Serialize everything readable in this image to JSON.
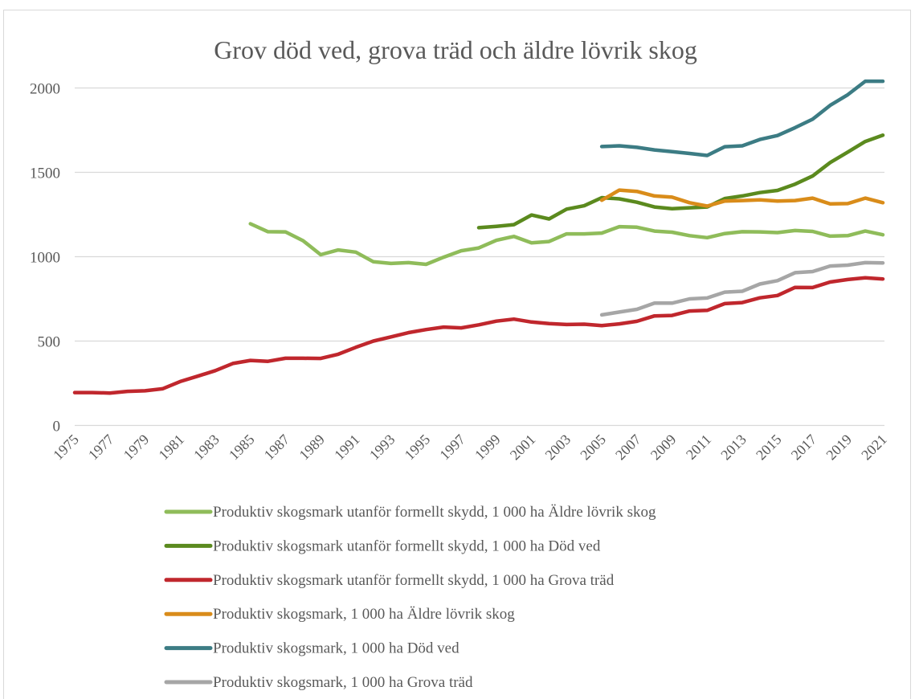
{
  "chart_data": {
    "type": "line",
    "title": "Grov död ved, grova träd och äldre lövrik skog",
    "xlabel": "",
    "ylabel": "",
    "ylim": [
      0,
      2000
    ],
    "yticks": [
      0,
      500,
      1000,
      1500,
      2000
    ],
    "grid": true,
    "legend_position": "bottom",
    "x": [
      1975,
      1976,
      1977,
      1978,
      1979,
      1980,
      1981,
      1982,
      1983,
      1984,
      1985,
      1986,
      1987,
      1988,
      1989,
      1990,
      1991,
      1992,
      1993,
      1994,
      1995,
      1996,
      1997,
      1998,
      1999,
      2000,
      2001,
      2002,
      2003,
      2004,
      2005,
      2006,
      2007,
      2008,
      2009,
      2010,
      2011,
      2012,
      2013,
      2014,
      2015,
      2016,
      2017,
      2018,
      2019,
      2020,
      2021
    ],
    "xtick_labels": [
      "1975",
      "1977",
      "1979",
      "1981",
      "1983",
      "1985",
      "1987",
      "1989",
      "1991",
      "1993",
      "1995",
      "1997",
      "1999",
      "2001",
      "2003",
      "2005",
      "2007",
      "2009",
      "2011",
      "2013",
      "2015",
      "2017",
      "2019",
      "2021"
    ],
    "series": [
      {
        "name": "Produktiv skogsmark utanför formellt skydd, 1 000 ha Äldre lövrik skog",
        "color": "#8fbc5a",
        "values": [
          null,
          null,
          null,
          null,
          null,
          null,
          null,
          null,
          null,
          null,
          1195,
          1148,
          1147,
          1095,
          1012,
          1040,
          1027,
          970,
          960,
          965,
          955,
          997,
          1035,
          1052,
          1097,
          1120,
          1082,
          1090,
          1135,
          1135,
          1140,
          1178,
          1175,
          1152,
          1145,
          1125,
          1113,
          1137,
          1148,
          1147,
          1143,
          1155,
          1150,
          1122,
          1125,
          1152,
          1130
        ]
      },
      {
        "name": "Produktiv skogsmark utanför formellt skydd, 1 000 ha Död ved",
        "color": "#5b8a1e",
        "values": [
          null,
          null,
          null,
          null,
          null,
          null,
          null,
          null,
          null,
          null,
          null,
          null,
          null,
          null,
          null,
          null,
          null,
          null,
          null,
          null,
          null,
          null,
          null,
          1172,
          1180,
          1190,
          1247,
          1224,
          1282,
          1302,
          1350,
          1343,
          1323,
          1295,
          1285,
          1290,
          1295,
          1345,
          1360,
          1380,
          1393,
          1430,
          1478,
          1558,
          1620,
          1683,
          1720
        ]
      },
      {
        "name": "Produktiv skogsmark utanför formellt skydd, 1 000 ha Grova träd",
        "color": "#c0272d",
        "values": [
          195,
          195,
          192,
          202,
          205,
          217,
          260,
          292,
          325,
          367,
          385,
          380,
          398,
          398,
          397,
          422,
          463,
          500,
          525,
          550,
          568,
          583,
          578,
          596,
          618,
          630,
          613,
          604,
          598,
          600,
          592,
          602,
          617,
          649,
          652,
          678,
          682,
          722,
          728,
          756,
          770,
          818,
          817,
          850,
          865,
          875,
          868
        ]
      },
      {
        "name": "Produktiv skogsmark, 1 000 ha Äldre lövrik skog",
        "color": "#d98c1a",
        "values": [
          null,
          null,
          null,
          null,
          null,
          null,
          null,
          null,
          null,
          null,
          null,
          null,
          null,
          null,
          null,
          null,
          null,
          null,
          null,
          null,
          null,
          null,
          null,
          null,
          null,
          null,
          null,
          null,
          null,
          null,
          1335,
          1395,
          1387,
          1360,
          1353,
          1320,
          1300,
          1330,
          1333,
          1337,
          1330,
          1333,
          1347,
          1313,
          1315,
          1347,
          1320
        ]
      },
      {
        "name": "Produktiv skogsmark, 1 000 ha Död ved",
        "color": "#3c7c84",
        "values": [
          null,
          null,
          null,
          null,
          null,
          null,
          null,
          null,
          null,
          null,
          null,
          null,
          null,
          null,
          null,
          null,
          null,
          null,
          null,
          null,
          null,
          null,
          null,
          null,
          null,
          null,
          null,
          null,
          null,
          null,
          1653,
          1657,
          1648,
          1633,
          1623,
          1612,
          1600,
          1652,
          1657,
          1695,
          1718,
          1765,
          1815,
          1897,
          1960,
          2040,
          2040
        ]
      },
      {
        "name": "Produktiv skogsmark, 1 000 ha Grova träd",
        "color": "#a6a6a6",
        "values": [
          null,
          null,
          null,
          null,
          null,
          null,
          null,
          null,
          null,
          null,
          null,
          null,
          null,
          null,
          null,
          null,
          null,
          null,
          null,
          null,
          null,
          null,
          null,
          null,
          null,
          null,
          null,
          null,
          null,
          null,
          655,
          672,
          688,
          725,
          725,
          750,
          755,
          790,
          795,
          838,
          858,
          905,
          912,
          945,
          950,
          965,
          963
        ]
      }
    ]
  }
}
